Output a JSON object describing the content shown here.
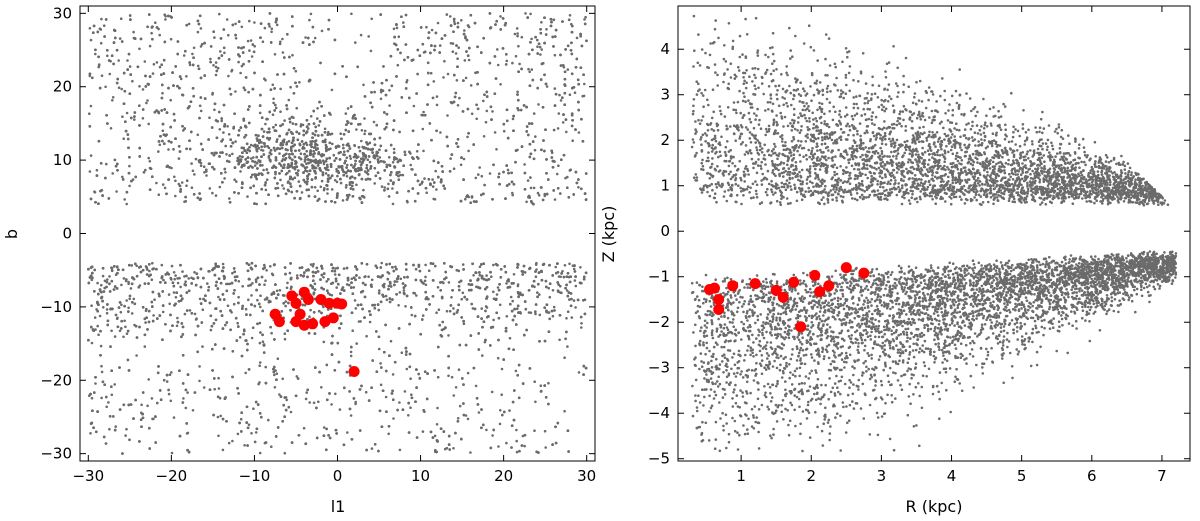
{
  "chart_data": [
    {
      "type": "scatter",
      "xlabel": "l1",
      "ylabel": "b",
      "xlim": [
        -31,
        31
      ],
      "ylim": [
        -31,
        31
      ],
      "xticks": [
        "−30",
        "−20",
        "−10",
        "0",
        "10",
        "20",
        "30"
      ],
      "xtick_values": [
        -30,
        -20,
        -10,
        0,
        10,
        20,
        30
      ],
      "yticks": [
        "30",
        "20",
        "10",
        "0",
        "−10",
        "−20",
        "−30"
      ],
      "ytick_values": [
        30,
        20,
        10,
        0,
        -10,
        -20,
        -30
      ],
      "grid": false,
      "series": [
        {
          "color": "#6b6b6b",
          "marker": "small dot",
          "density_regions": [
            {
              "x_range": [
                -30,
                30
              ],
              "y_range": [
                4,
                30
              ],
              "weight": 0.35
            },
            {
              "x_range": [
                -15,
                12
              ],
              "y_range": [
                5,
                16
              ],
              "weight": 0.15
            },
            {
              "x_range": [
                -30,
                30
              ],
              "y_range": [
                -20,
                -4
              ],
              "weight": 0.35
            },
            {
              "x_range": [
                -30,
                30
              ],
              "y_range": [
                -30,
                -20
              ],
              "weight": 0.15
            }
          ]
        },
        {
          "color": "#ff0000",
          "marker": "large dot",
          "points": [
            [
              -5.5,
              -8.5
            ],
            [
              -4,
              -8
            ],
            [
              -3.5,
              -9
            ],
            [
              -5,
              -9.5
            ],
            [
              -2,
              -9
            ],
            [
              -1,
              -9.5
            ],
            [
              0,
              -9.5
            ],
            [
              0.5,
              -9.6
            ],
            [
              -4.5,
              -11
            ],
            [
              -7.5,
              -11
            ],
            [
              -7,
              -12
            ],
            [
              -5,
              -12
            ],
            [
              -4,
              -12.5
            ],
            [
              -3,
              -12.3
            ],
            [
              -1.5,
              -12
            ],
            [
              -0.5,
              -11.5
            ],
            [
              2,
              -18.8
            ]
          ]
        }
      ]
    },
    {
      "type": "scatter",
      "xlabel": "R (kpc)",
      "ylabel": "Z (kpc)",
      "xlim": [
        0.1,
        7.4
      ],
      "ylim": [
        -5.05,
        4.95
      ],
      "xticks": [
        "1",
        "2",
        "3",
        "4",
        "5",
        "6",
        "7"
      ],
      "xtick_values": [
        1,
        2,
        3,
        4,
        5,
        6,
        7
      ],
      "yticks": [
        "4",
        "3",
        "2",
        "1",
        "0",
        "−1",
        "−2",
        "−3",
        "−4",
        "−5"
      ],
      "ytick_values": [
        4,
        3,
        2,
        1,
        0,
        -1,
        -2,
        -3,
        -4,
        -5
      ],
      "grid": false,
      "series": [
        {
          "color": "#6b6b6b",
          "marker": "small dot",
          "density_regions": [
            {
              "x_range": [
                0.3,
                7.2
              ],
              "y_range": [
                0.5,
                4.6
              ],
              "shape": "upper wedge"
            },
            {
              "x_range": [
                0.2,
                7.2
              ],
              "y_range": [
                -4.8,
                -0.5
              ],
              "shape": "lower wedge"
            }
          ]
        },
        {
          "color": "#ff0000",
          "marker": "large dot",
          "points": [
            [
              0.55,
              -1.28
            ],
            [
              0.62,
              -1.25
            ],
            [
              0.68,
              -1.5
            ],
            [
              0.68,
              -1.72
            ],
            [
              0.88,
              -1.2
            ],
            [
              1.2,
              -1.15
            ],
            [
              1.5,
              -1.3
            ],
            [
              1.6,
              -1.45
            ],
            [
              1.75,
              -1.12
            ],
            [
              1.85,
              -2.1
            ],
            [
              2.05,
              -0.97
            ],
            [
              2.12,
              -1.33
            ],
            [
              2.25,
              -1.2
            ],
            [
              2.5,
              -0.8
            ],
            [
              2.75,
              -0.92
            ]
          ]
        }
      ]
    }
  ]
}
